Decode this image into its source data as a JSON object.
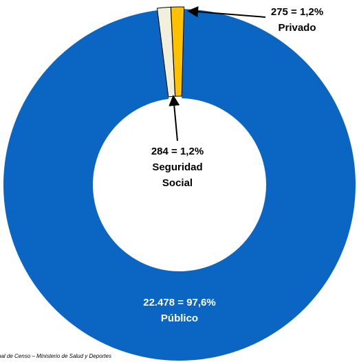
{
  "chart_data": {
    "type": "donut",
    "categories": [
      "Público",
      "Seguridad Social",
      "Privado"
    ],
    "values": [
      22478,
      284,
      275
    ],
    "value_labels": [
      "22.478 = 97,6%",
      "284 = 1,2%",
      "275 = 1,2%"
    ],
    "colors": [
      "#0b66c3",
      "#f0f0dc",
      "#ffc000"
    ],
    "source": "nal de Censo – Ministerio de Salud y Deportes"
  }
}
